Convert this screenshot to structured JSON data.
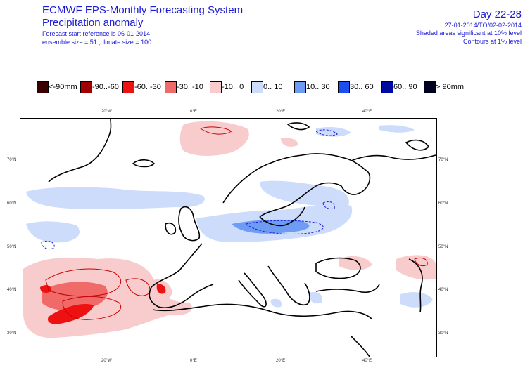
{
  "header": {
    "title_line1": "ECMWF EPS-Monthly Forecasting System",
    "title_line2": "Precipitation anomaly",
    "subtitle_line1": "Forecast start reference is 06-01-2014",
    "subtitle_line2": "ensemble size = 51  ,climate size = 100",
    "day_range": "Day 22-28",
    "date_range": "27-01-2014/TO/02-02-2014",
    "note_shaded": "Shaded areas significant at 10% level",
    "note_contours": "Contours at 1% level"
  },
  "legend": [
    {
      "label": "<-90mm",
      "color": "#3a0000"
    },
    {
      "label": "-90..-60",
      "color": "#a00000"
    },
    {
      "label": "-60..-30",
      "color": "#ee1111"
    },
    {
      "label": "-30..-10",
      "color": "#f06a6a"
    },
    {
      "label": "-10..  0",
      "color": "#f8cccc"
    },
    {
      "label": "0..  10",
      "color": "#ccdcfa"
    },
    {
      "label": "10.. 30",
      "color": "#6e9cf5"
    },
    {
      "label": "30.. 60",
      "color": "#1a4ef0"
    },
    {
      "label": "60.. 90",
      "color": "#000a9e"
    },
    {
      "label": ">  90mm",
      "color": "#000020"
    }
  ],
  "map": {
    "lon_labels": [
      "20°W",
      "0°E",
      "20°E",
      "40°E"
    ],
    "lat_labels": [
      "70°N",
      "60°N",
      "50°N",
      "40°N",
      "30°N"
    ],
    "colors": {
      "coast": "#000000",
      "neg_light": "#f8cccc",
      "neg_mid": "#f06a6a",
      "neg_strong": "#ee1111",
      "pos_light": "#ccdcfa",
      "pos_mid": "#6e9cf5",
      "contour_neg": "#cc0000",
      "contour_pos": "#1a1ad6"
    }
  }
}
